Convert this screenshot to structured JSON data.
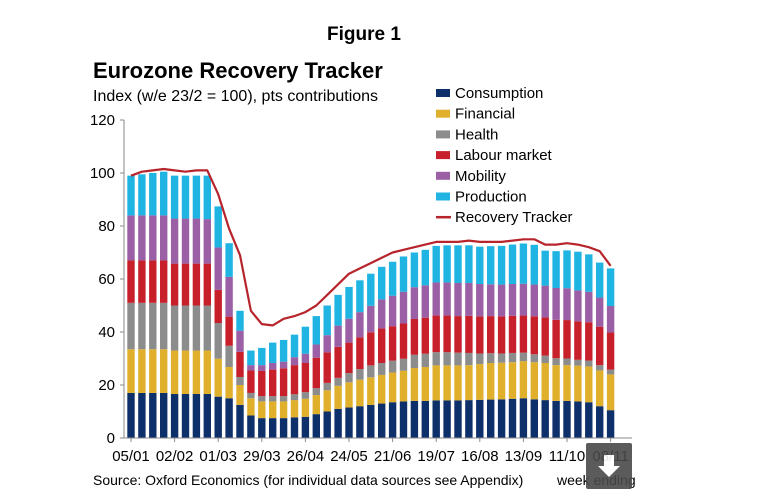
{
  "figure_label": "Figure 1",
  "source_text": "Source: Oxford Economics (for individual data sources see Appendix)",
  "download_icon": "download-arrow-icon",
  "chart_data": {
    "type": "bar",
    "stacked": true,
    "title": "Eurozone Recovery Tracker",
    "subtitle": "Index (w/e 23/2 = 100), pts contributions",
    "xlabel": "week ending",
    "ylabel": "",
    "ylim": [
      0,
      120
    ],
    "yticks": [
      0,
      20,
      40,
      60,
      80,
      100,
      120
    ],
    "grid": false,
    "legend_position": "top-right",
    "tick_labels": [
      "05/01",
      "02/02",
      "01/03",
      "29/03",
      "26/04",
      "24/05",
      "21/06",
      "19/07",
      "16/08",
      "13/09",
      "11/10",
      "08/11"
    ],
    "tick_label_indices": [
      0,
      4,
      8,
      12,
      16,
      20,
      24,
      28,
      32,
      36,
      40,
      44
    ],
    "categories": [
      "05/01",
      "12/01",
      "19/01",
      "26/01",
      "02/02",
      "09/02",
      "16/02",
      "23/02",
      "01/03",
      "08/03",
      "15/03",
      "22/03",
      "29/03",
      "05/04",
      "12/04",
      "19/04",
      "26/04",
      "03/05",
      "10/05",
      "17/05",
      "24/05",
      "31/05",
      "07/06",
      "14/06",
      "21/06",
      "28/06",
      "05/07",
      "12/07",
      "19/07",
      "26/07",
      "02/08",
      "09/08",
      "16/08",
      "23/08",
      "30/08",
      "06/09",
      "13/09",
      "20/09",
      "27/09",
      "04/10",
      "11/10",
      "18/10",
      "25/10",
      "01/11",
      "08/11"
    ],
    "series": [
      {
        "name": "Consumption",
        "color": "#0d2f6a",
        "values": [
          17,
          17,
          17,
          17,
          16.6,
          16.6,
          16.6,
          16.6,
          15.6,
          15,
          12.5,
          8.5,
          7.5,
          7.5,
          7.5,
          7.8,
          8,
          9,
          10,
          11,
          11.5,
          12,
          12.5,
          13,
          13.5,
          13.8,
          14,
          14,
          14.2,
          14.2,
          14.2,
          14.3,
          14.4,
          14.5,
          14.6,
          14.8,
          15,
          14.6,
          14.3,
          14,
          14,
          13.8,
          13.5,
          12,
          10.5
        ]
      },
      {
        "name": "Financial",
        "color": "#e0b02c",
        "values": [
          16.5,
          16.5,
          16.5,
          16.5,
          16.4,
          16.4,
          16.4,
          16.4,
          14.3,
          11.8,
          7.5,
          6.5,
          6.3,
          6.3,
          6.3,
          6.5,
          6.8,
          7.2,
          8,
          8.7,
          9.5,
          10,
          10.4,
          10.8,
          11.2,
          11.6,
          12.4,
          12.8,
          13.2,
          13.2,
          13.2,
          13.2,
          13.5,
          13.8,
          13.8,
          13.8,
          14,
          14,
          14,
          13.5,
          13.5,
          13.5,
          13.5,
          13.5,
          13.5
        ]
      },
      {
        "name": "Health",
        "color": "#8c8c8c",
        "values": [
          17.5,
          17.5,
          17.5,
          17.5,
          17,
          17,
          17,
          17,
          13.5,
          8,
          3,
          2,
          2,
          2,
          2,
          2.2,
          2.5,
          2.6,
          2.8,
          3,
          3.5,
          4,
          4.5,
          4.5,
          4.5,
          4.5,
          5,
          5,
          5,
          5,
          4.8,
          4.6,
          4,
          3.7,
          3.5,
          3.5,
          3.2,
          3,
          2.8,
          2.6,
          2.5,
          2.2,
          2.2,
          2,
          1.8
        ]
      },
      {
        "name": "Labour market",
        "color": "#c8202a",
        "values": [
          16,
          16,
          16,
          16,
          15.8,
          15.8,
          15.8,
          15.8,
          12.5,
          11,
          9.5,
          8.5,
          9.5,
          10,
          10.5,
          11,
          11,
          11.5,
          11.5,
          11.7,
          11.5,
          12,
          12.5,
          13,
          13,
          13.3,
          13.5,
          13.6,
          13.8,
          13.8,
          13.8,
          14,
          14,
          14,
          14,
          14,
          14,
          14.3,
          14.4,
          14.5,
          14.5,
          14.5,
          14.5,
          14.5,
          14
        ]
      },
      {
        "name": "Mobility",
        "color": "#9b5fa6",
        "values": [
          17,
          17,
          17,
          17,
          17,
          17,
          17,
          16.8,
          16,
          15,
          8,
          2,
          2.2,
          2.5,
          2.5,
          3,
          3.5,
          5,
          6.5,
          8,
          9,
          9.5,
          10,
          11,
          11.5,
          12,
          12,
          12.2,
          12.5,
          12.5,
          12.5,
          12.4,
          12.2,
          12,
          12,
          12,
          12,
          12,
          12,
          12,
          12,
          11.7,
          11.5,
          11,
          10
        ]
      },
      {
        "name": "Production",
        "color": "#1fb4e1",
        "values": [
          15,
          15.5,
          16,
          16.5,
          16.2,
          16.2,
          16.2,
          16.4,
          15.5,
          12.7,
          7.5,
          5.5,
          6.5,
          7.7,
          8.2,
          8.5,
          10.2,
          10.7,
          11.2,
          11.6,
          12,
          12,
          12.1,
          12.3,
          12.8,
          13.3,
          13.1,
          13.4,
          13.8,
          14,
          14.2,
          14.2,
          14.1,
          14.4,
          14.6,
          14.9,
          15.2,
          15,
          13.2,
          13.9,
          14.3,
          14.6,
          14.1,
          13.2,
          14.2
        ]
      }
    ],
    "line_series": {
      "name": "Recovery Tracker",
      "color": "#b8242c",
      "values": [
        99,
        100.5,
        101,
        101.5,
        101,
        100.5,
        101,
        101,
        92,
        79,
        69,
        48,
        43,
        42.5,
        45,
        46,
        47.5,
        50,
        54,
        58,
        62,
        64,
        66,
        68,
        70,
        71,
        72,
        73,
        74,
        74,
        74,
        74.5,
        74,
        74,
        74,
        74.5,
        75,
        75,
        73,
        73,
        73.5,
        73,
        72,
        70.5,
        65
      ]
    }
  }
}
